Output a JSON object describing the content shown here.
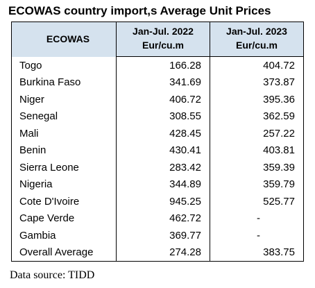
{
  "title": "ECOWAS country import,s Average Unit Prices",
  "table": {
    "header": {
      "country_label": "ECOWAS",
      "col1_period": "Jan-Jul. 2022",
      "col1_unit": "Eur/cu.m",
      "col2_period": "Jan-Jul. 2023",
      "col2_unit": "Eur/cu.m"
    },
    "rows": [
      {
        "country": "Togo",
        "v2022": "166.28",
        "v2023": "404.72"
      },
      {
        "country": "Burkina Faso",
        "v2022": "341.69",
        "v2023": "373.87"
      },
      {
        "country": "Niger",
        "v2022": "406.72",
        "v2023": "395.36"
      },
      {
        "country": "Senegal",
        "v2022": "308.55",
        "v2023": "362.59"
      },
      {
        "country": "Mali",
        "v2022": "428.45",
        "v2023": "257.22"
      },
      {
        "country": "Benin",
        "v2022": "430.41",
        "v2023": "403.81"
      },
      {
        "country": "Sierra Leone",
        "v2022": "283.42",
        "v2023": "359.39"
      },
      {
        "country": "Nigeria",
        "v2022": "344.89",
        "v2023": "359.79"
      },
      {
        "country": "Cote D'Ivoire",
        "v2022": "945.25",
        "v2023": "525.77"
      },
      {
        "country": "Cape Verde",
        "v2022": "462.72",
        "v2023": "-"
      },
      {
        "country": "Gambia",
        "v2022": "369.77",
        "v2023": "-"
      },
      {
        "country": "Overall Average",
        "v2022": "274.28",
        "v2023": "383.75"
      }
    ]
  },
  "source": "Data source: TIDD",
  "colors": {
    "header_background": "#d5e2ee"
  }
}
